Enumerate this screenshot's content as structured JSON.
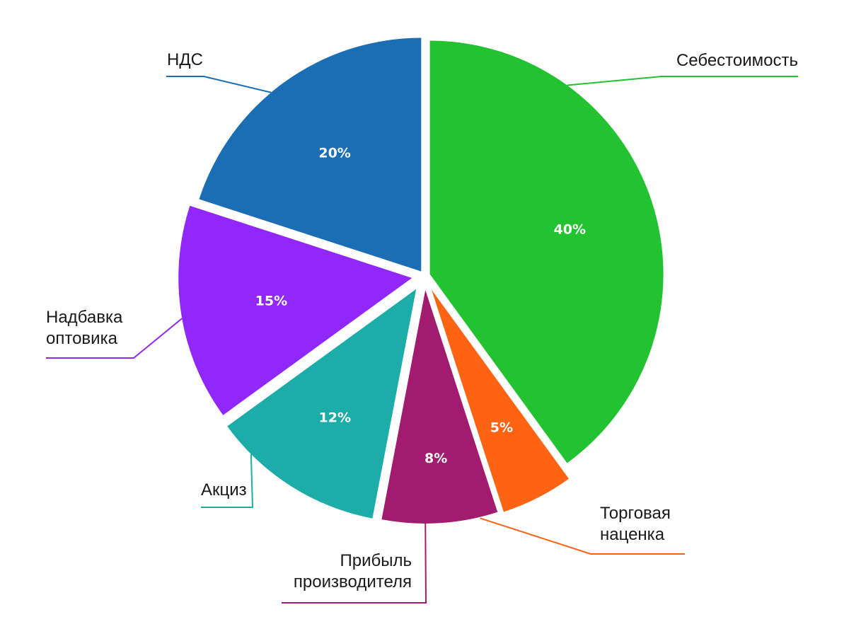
{
  "chart_data": {
    "type": "pie",
    "title": "",
    "start_angle_deg": 0,
    "direction": "clockwise",
    "exploded": true,
    "slices": [
      {
        "label": "Себестоимость",
        "value": 40,
        "value_label": "40%",
        "color": "#22c230"
      },
      {
        "label": "Торговая наценка",
        "value": 5,
        "value_label": "5%",
        "color": "#ff6314"
      },
      {
        "label": "Прибыль производителя",
        "value": 8,
        "value_label": "8%",
        "color": "#a11c6e"
      },
      {
        "label": "Акциз",
        "value": 12,
        "value_label": "12%",
        "color": "#1cada8"
      },
      {
        "label": "Надбавка оптовика",
        "value": 15,
        "value_label": "15%",
        "color": "#9128fb"
      },
      {
        "label": "НДС",
        "value": 20,
        "value_label": "20%",
        "color": "#1b6db4"
      }
    ],
    "callout_lines": [
      [
        "Себестоимость"
      ],
      [
        "Торговая",
        "наценка"
      ],
      [
        "Прибыль",
        "производителя"
      ],
      [
        "Акциз"
      ],
      [
        "Надбавка",
        "оптовика"
      ],
      [
        "НДС"
      ]
    ],
    "legend": "callouts"
  }
}
